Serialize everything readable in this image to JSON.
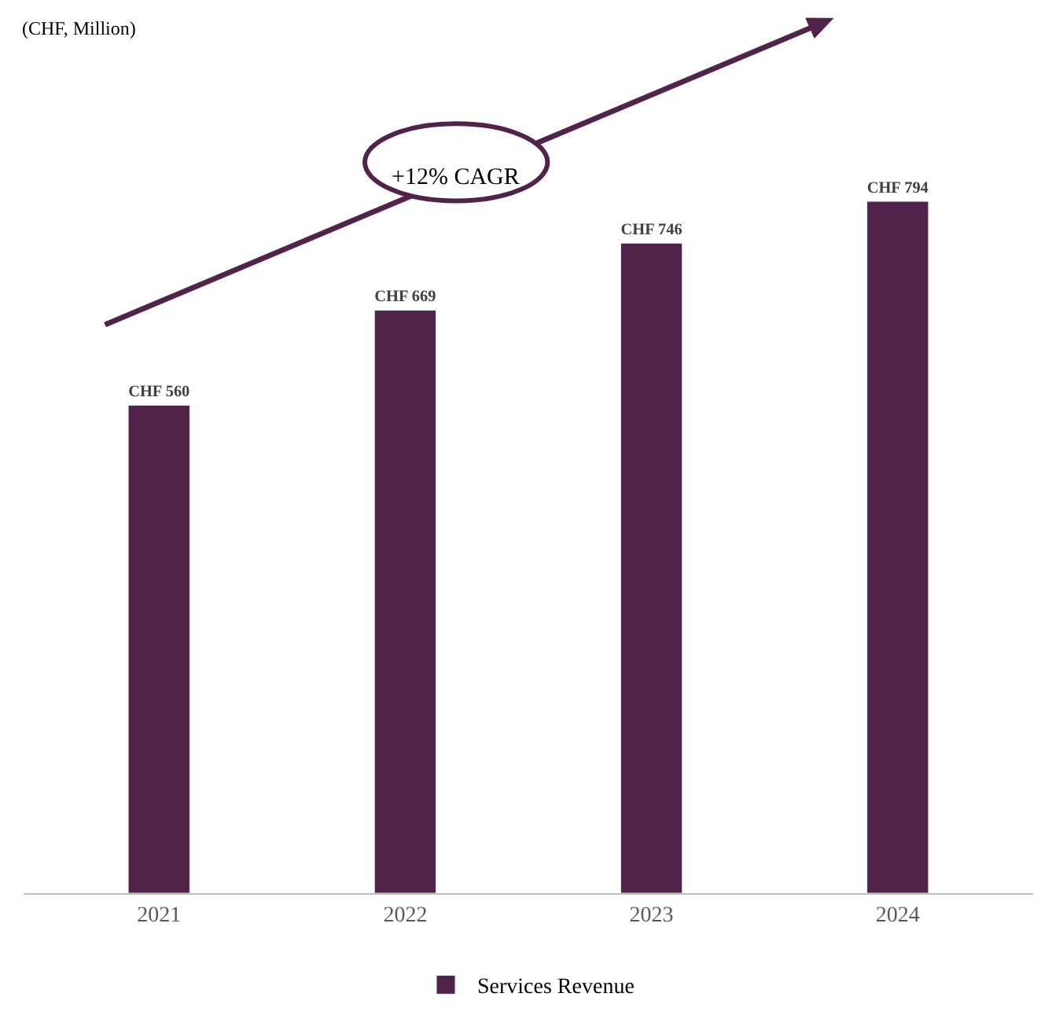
{
  "chart_data": {
    "type": "bar",
    "categories": [
      "2021",
      "2022",
      "2023",
      "2024"
    ],
    "series": [
      {
        "name": "Services Revenue",
        "color": "#52234a",
        "values": [
          560,
          669,
          746,
          794
        ],
        "value_labels": [
          "CHF 560",
          "CHF 669",
          "CHF 746",
          "CHF 794"
        ]
      }
    ],
    "tick_labels": "x",
    "annotations": [
      "(CHF, Million)",
      "+12% CAGR"
    ],
    "legend": "bottom"
  }
}
